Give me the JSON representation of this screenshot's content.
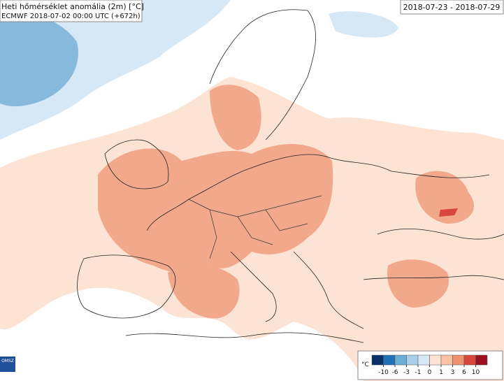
{
  "header": {
    "title": "Heti hőmérséklet anomália (2m) [°C]",
    "subtitle": "ECMWF 2018-07-02 00:00 UTC (+672h)",
    "period": "2018-07-23 - 2018-07-29"
  },
  "logo": "OMSZ",
  "legend": {
    "unit": "°C",
    "ticks": [
      -10,
      -6,
      -3,
      -1,
      0,
      1,
      3,
      6,
      10
    ],
    "colors": [
      "#08306b",
      "#2171b5",
      "#6baed6",
      "#a9cfe8",
      "#d6e8f5",
      "#fde3d4",
      "#f9c2a4",
      "#ee9270",
      "#d9463d",
      "#99101e"
    ]
  }
}
